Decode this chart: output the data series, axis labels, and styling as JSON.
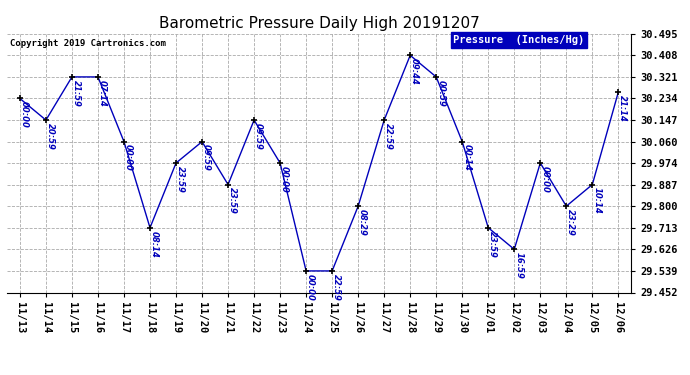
{
  "title": "Barometric Pressure Daily High 20191207",
  "copyright": "Copyright 2019 Cartronics.com",
  "legend_label": "Pressure  (Inches/Hg)",
  "x_labels": [
    "11/13",
    "11/14",
    "11/15",
    "11/16",
    "11/17",
    "11/18",
    "11/19",
    "11/20",
    "11/21",
    "11/22",
    "11/23",
    "11/24",
    "11/25",
    "11/26",
    "11/27",
    "11/28",
    "11/29",
    "11/30",
    "12/01",
    "12/02",
    "12/03",
    "12/04",
    "12/05",
    "12/06"
  ],
  "y_values": [
    30.234,
    30.147,
    30.321,
    30.321,
    30.06,
    29.713,
    29.974,
    30.06,
    29.887,
    30.147,
    29.974,
    29.539,
    29.539,
    29.8,
    30.147,
    30.408,
    30.321,
    30.06,
    29.713,
    29.626,
    29.974,
    29.8,
    29.887,
    30.26
  ],
  "point_labels": [
    "00:00",
    "20:59",
    "21:59",
    "07:14",
    "00:00",
    "08:14",
    "23:59",
    "09:59",
    "23:59",
    "09:59",
    "00:00",
    "00:00",
    "22:59",
    "08:29",
    "22:59",
    "09:44",
    "00:59",
    "00:14",
    "23:59",
    "16:59",
    "00:00",
    "23:29",
    "10:14",
    "21:14"
  ],
  "y_ticks": [
    29.452,
    29.539,
    29.626,
    29.713,
    29.8,
    29.887,
    29.974,
    30.06,
    30.147,
    30.234,
    30.321,
    30.408,
    30.495
  ],
  "y_min": 29.452,
  "y_max": 30.495,
  "line_color": "#0000bb",
  "marker_color": "#000000",
  "bg_color": "#ffffff",
  "grid_color": "#aaaaaa",
  "title_color": "#000000",
  "label_color": "#0000bb",
  "copyright_color": "#000000",
  "legend_bg": "#0000bb",
  "legend_fg": "#ffffff"
}
